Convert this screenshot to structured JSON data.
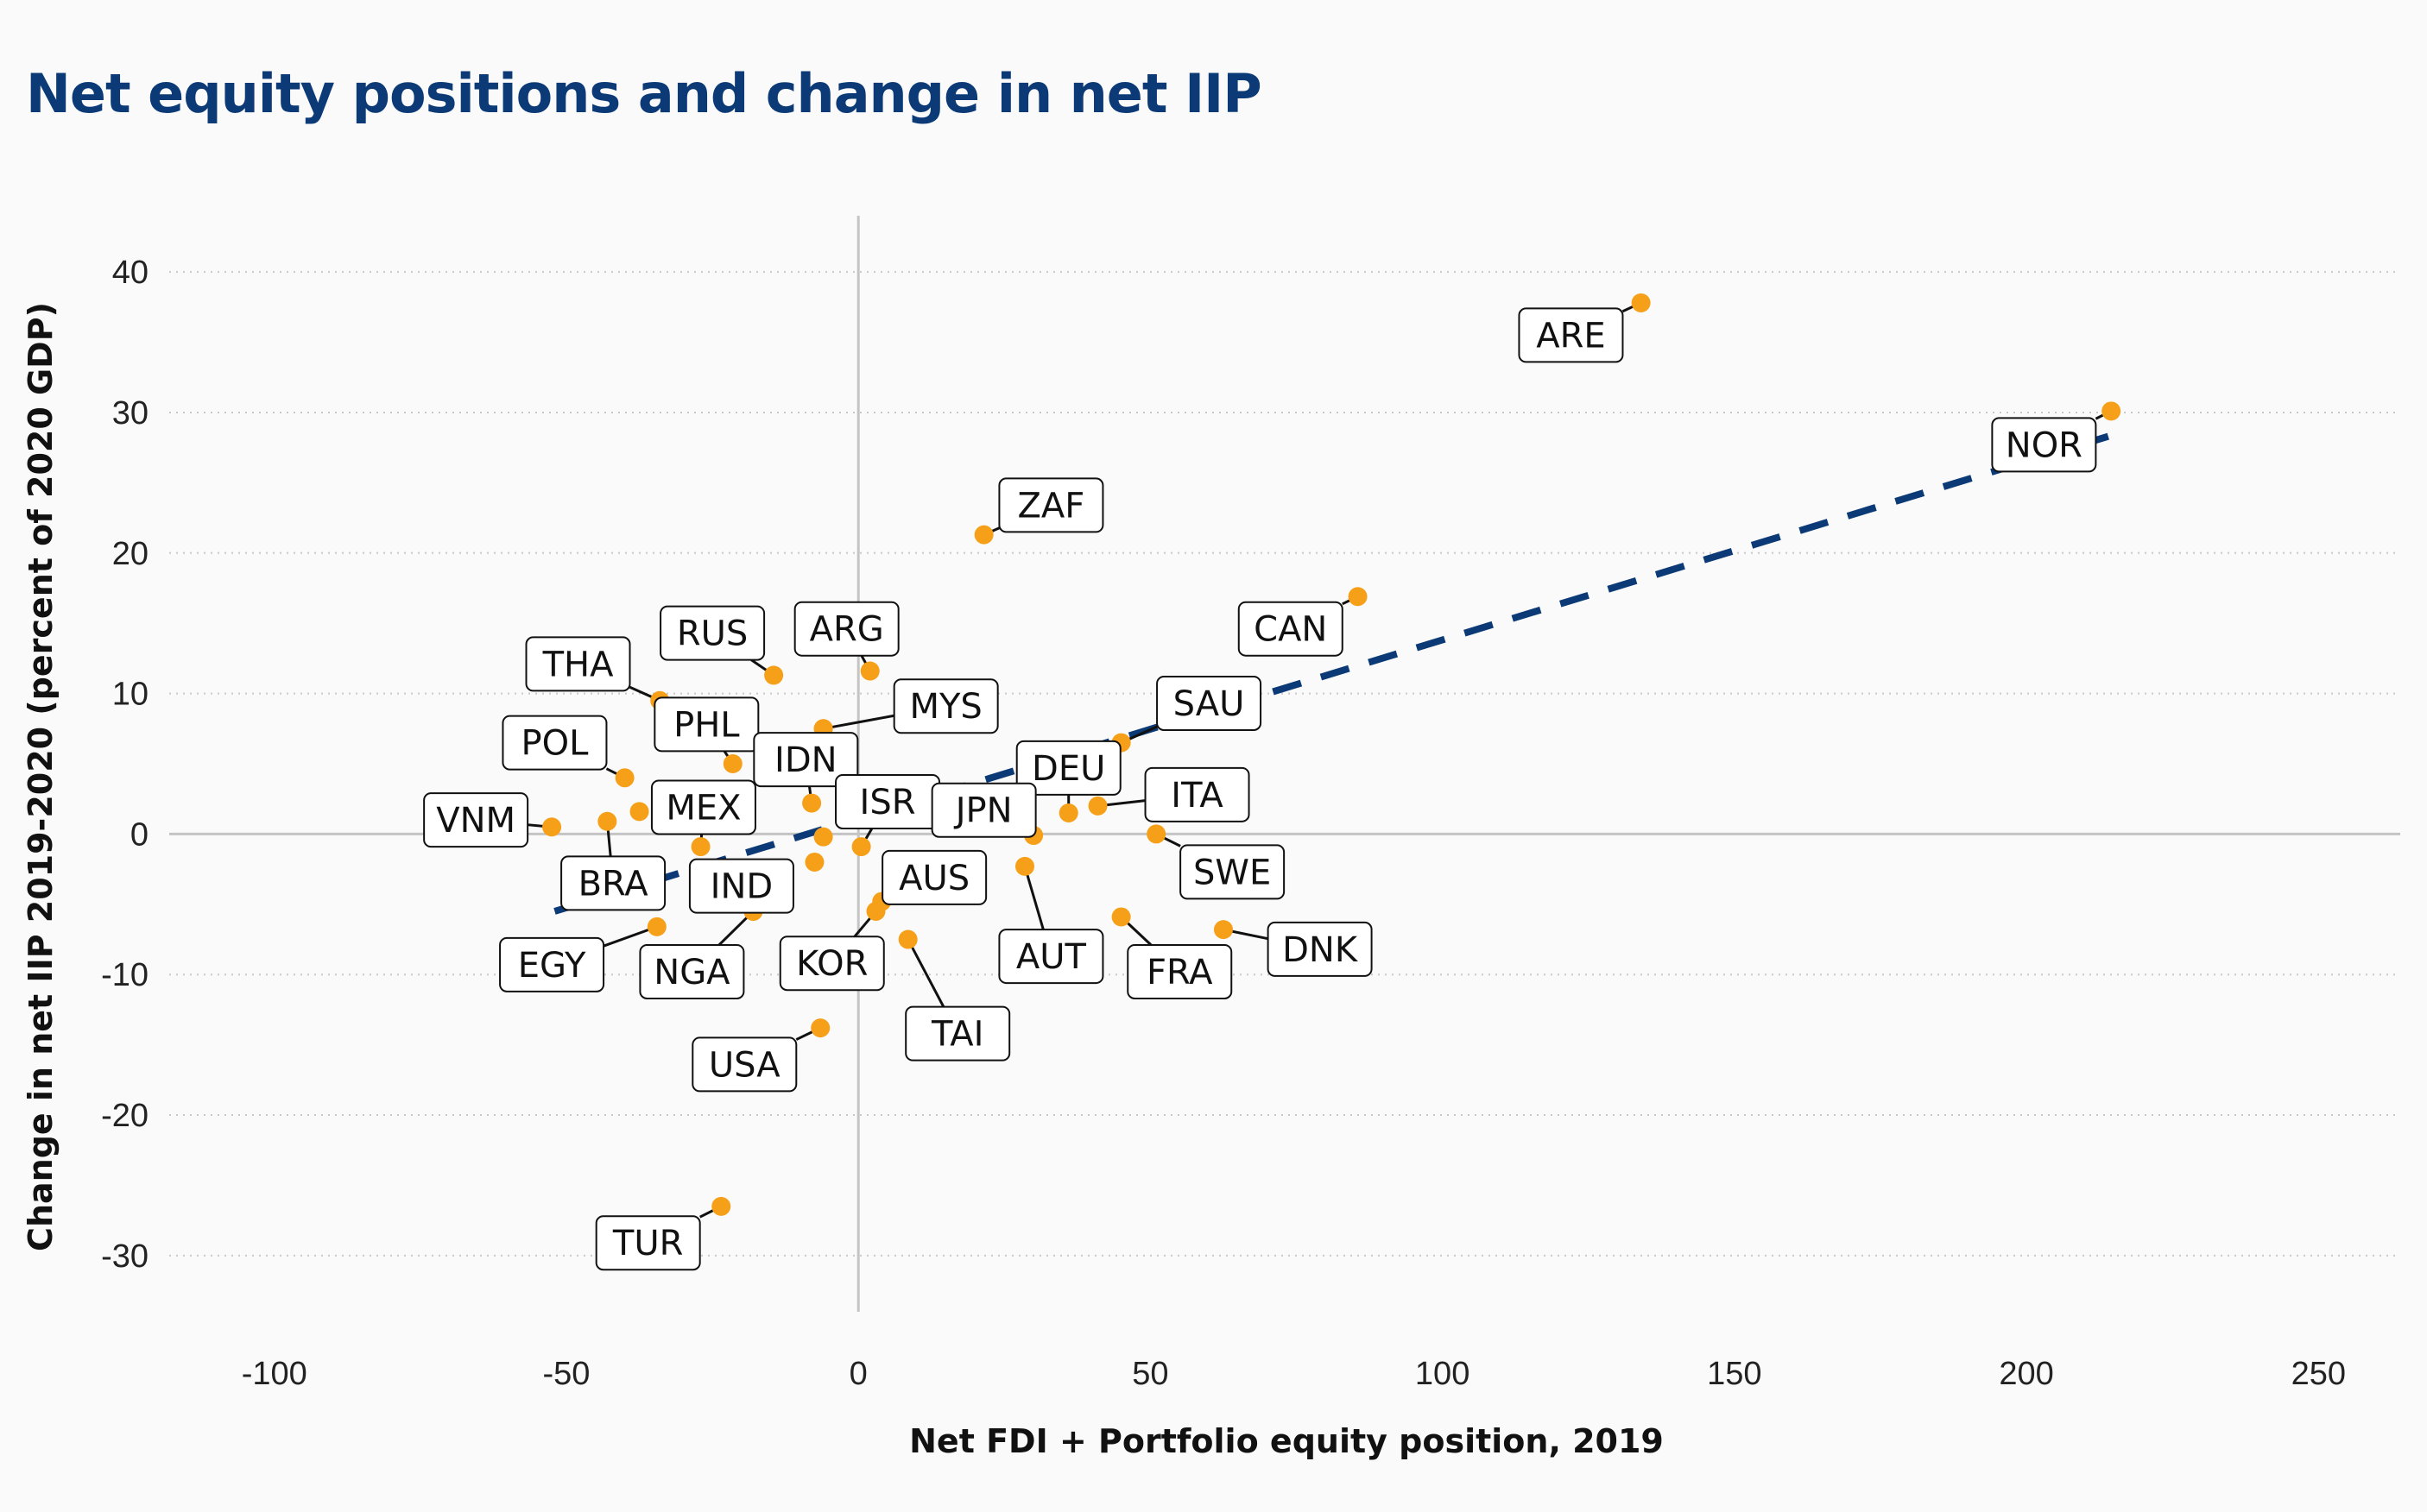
{
  "chart_data": {
    "type": "scatter",
    "title": "Net equity positions and change in net IIP",
    "xlabel": "Net FDI + Portfolio equity position, 2019",
    "ylabel": "Change in net IIP 2019-2020 (percent of 2020 GDP)",
    "xlim": [
      -118,
      264
    ],
    "ylim": [
      -34,
      44
    ],
    "xticks": [
      -100,
      -50,
      0,
      50,
      100,
      150,
      200,
      250
    ],
    "yticks": [
      -30,
      -20,
      -10,
      0,
      10,
      20,
      30,
      40
    ],
    "xtick_labels": [
      "-100",
      "-50",
      "0",
      "50",
      "100",
      "150",
      "200",
      "250"
    ],
    "ytick_labels": [
      "-30",
      "-20",
      "-10",
      "0",
      "10",
      "20",
      "30",
      "40"
    ],
    "grid": "horizontal-dotted",
    "point_color": "#f6a01a",
    "trend_color": "#0b3a77",
    "trend_line": {
      "x": [
        -52,
        214
      ],
      "y": [
        -5.5,
        28.3
      ],
      "style": "dashed"
    },
    "points": [
      {
        "label": "ARE",
        "x": 134,
        "y": 37.8,
        "lx": 122,
        "ly": 35.5
      },
      {
        "label": "NOR",
        "x": 214.5,
        "y": 30.1,
        "lx": 203,
        "ly": 27.7
      },
      {
        "label": "ZAF",
        "x": 21.5,
        "y": 21.3,
        "lx": 33,
        "ly": 23.4
      },
      {
        "label": "CAN",
        "x": 85.5,
        "y": 16.9,
        "lx": 74,
        "ly": 14.6
      },
      {
        "label": "RUS",
        "x": -14.5,
        "y": 11.3,
        "lx": -25,
        "ly": 14.3
      },
      {
        "label": "ARG",
        "x": 2,
        "y": 11.6,
        "lx": -2,
        "ly": 14.6
      },
      {
        "label": "THA",
        "x": -34,
        "y": 9.5,
        "lx": -48,
        "ly": 12.1
      },
      {
        "label": "SAU",
        "x": 45,
        "y": 6.5,
        "lx": 60,
        "ly": 9.3
      },
      {
        "label": "MYS",
        "x": -6,
        "y": 7.5,
        "lx": 15,
        "ly": 9.1
      },
      {
        "label": "PHL",
        "x": -21.5,
        "y": 5,
        "lx": -26,
        "ly": 7.8
      },
      {
        "label": "IDN",
        "x": -8,
        "y": 2.2,
        "lx": -9,
        "ly": 5.3
      },
      {
        "label": "POL",
        "x": -40,
        "y": 4,
        "lx": -52,
        "ly": 6.5
      },
      {
        "label": "DEU",
        "x": 36,
        "y": 1.5,
        "lx": 36,
        "ly": 4.7
      },
      {
        "label": "ITA",
        "x": 41,
        "y": 2,
        "lx": 58,
        "ly": 2.8
      },
      {
        "label": "ISR",
        "x": 0.5,
        "y": -0.9,
        "lx": 5,
        "ly": 2.3
      },
      {
        "label": "JPN",
        "x": 30,
        "y": -0.1,
        "lx": 21.5,
        "ly": 1.7
      },
      {
        "label": "MEX",
        "x": -27,
        "y": -0.9,
        "lx": -26.5,
        "ly": 1.9
      },
      {
        "label": "VNM",
        "x": -52.5,
        "y": 0.5,
        "lx": -65.5,
        "ly": 1
      },
      {
        "label": "BRA",
        "x": -43,
        "y": 0.9,
        "lx": -42,
        "ly": -3.5
      },
      {
        "label": "SWE",
        "x": 51,
        "y": 0,
        "lx": 64,
        "ly": -2.7
      },
      {
        "label": "AUS",
        "x": 4,
        "y": -4.8,
        "lx": 13,
        "ly": -3.1
      },
      {
        "label": "IND",
        "x": -18,
        "y": -5.5,
        "lx": -20,
        "ly": -3.7
      },
      {
        "label": "AUT",
        "x": 28.5,
        "y": -2.3,
        "lx": 33,
        "ly": -8.7
      },
      {
        "label": "EGY",
        "x": -34.5,
        "y": -6.6,
        "lx": -52.5,
        "ly": -9.3
      },
      {
        "label": "NGA",
        "x": -18,
        "y": -5.5,
        "lx": -28.5,
        "ly": -9.8
      },
      {
        "label": "KOR",
        "x": 3,
        "y": -5.5,
        "lx": -4.5,
        "ly": -9.2
      },
      {
        "label": "FRA",
        "x": 45,
        "y": -5.9,
        "lx": 55,
        "ly": -9.8
      },
      {
        "label": "DNK",
        "x": 62.5,
        "y": -6.8,
        "lx": 79,
        "ly": -8.2
      },
      {
        "label": "TAI",
        "x": 8.5,
        "y": -7.5,
        "lx": 17,
        "ly": -14.2
      },
      {
        "label": "USA",
        "x": -6.5,
        "y": -13.8,
        "lx": -19.5,
        "ly": -16.4
      },
      {
        "label": "TUR",
        "x": -23.5,
        "y": -26.5,
        "lx": -36,
        "ly": -29.1
      }
    ],
    "extra_points": [
      {
        "x": -37.5,
        "y": 1.6
      },
      {
        "x": -7.5,
        "y": -2
      },
      {
        "x": -6,
        "y": -0.2
      },
      {
        "x": -6,
        "y": 7.5
      }
    ]
  }
}
